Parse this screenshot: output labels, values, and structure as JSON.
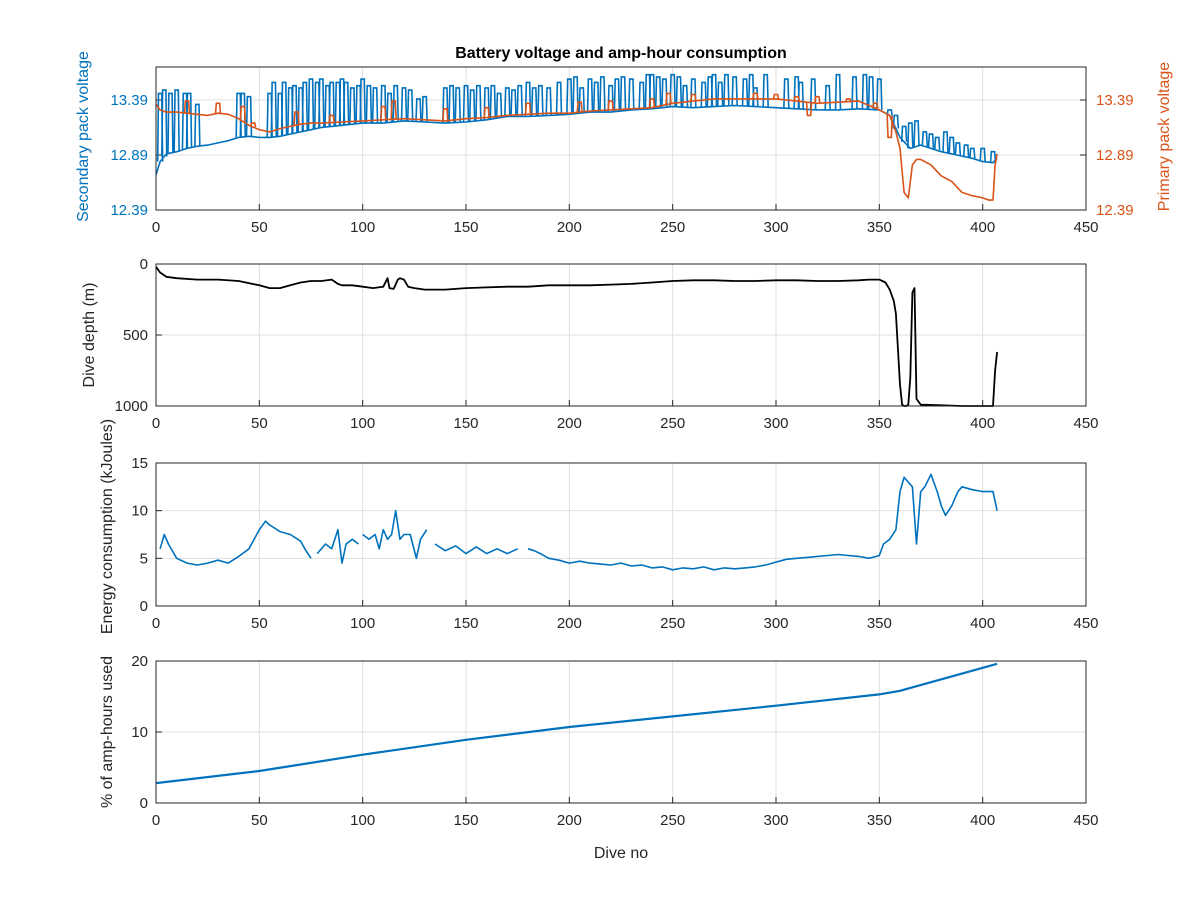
{
  "figure": {
    "title": "Battery voltage and amp-hour consumption",
    "xlabel": "Dive no"
  },
  "chart_data": [
    {
      "type": "line",
      "ylabel_left": "Secondary pack voltage",
      "ylabel_right": "Primary pack voltage",
      "xlim": [
        0,
        450
      ],
      "x_ticks": [
        "0",
        "50",
        "100",
        "150",
        "200",
        "250",
        "300",
        "350",
        "400",
        "450"
      ],
      "ylim_left": [
        12.39,
        13.69
      ],
      "ylim_right": [
        12.39,
        13.69
      ],
      "y_ticks_left": [
        "12.39",
        "12.89",
        "13.39"
      ],
      "y_ticks_right": [
        "12.39",
        "12.89",
        "13.39"
      ],
      "grid": true,
      "colors": {
        "secondary": "#0072BD",
        "primary": "#D95319"
      },
      "series": [
        {
          "axis": "left",
          "x": [
            0,
            2,
            5,
            10,
            15,
            20,
            25,
            30,
            35,
            40,
            45,
            50,
            55,
            60,
            65,
            70,
            75,
            80,
            90,
            100,
            110,
            120,
            130,
            140,
            150,
            160,
            170,
            180,
            190,
            200,
            210,
            220,
            230,
            240,
            250,
            260,
            270,
            280,
            290,
            300,
            310,
            320,
            330,
            340,
            350,
            355,
            360,
            365,
            370,
            375,
            380,
            385,
            390,
            395,
            400,
            405,
            407
          ],
          "y": [
            12.71,
            12.83,
            12.9,
            12.92,
            12.95,
            12.97,
            12.98,
            13.0,
            13.02,
            13.05,
            13.06,
            13.05,
            13.05,
            13.06,
            13.08,
            13.1,
            13.12,
            13.14,
            13.16,
            13.18,
            13.18,
            13.2,
            13.19,
            13.18,
            13.19,
            13.21,
            13.24,
            13.24,
            13.25,
            13.26,
            13.28,
            13.28,
            13.3,
            13.31,
            13.33,
            13.32,
            13.33,
            13.34,
            13.33,
            13.32,
            13.31,
            13.3,
            13.3,
            13.31,
            13.3,
            13.25,
            13.05,
            12.95,
            12.98,
            12.95,
            12.92,
            12.9,
            12.88,
            12.86,
            12.83,
            12.82,
            12.86
          ],
          "spikes": {
            "x": [
              2,
              4,
              7,
              10,
              14,
              16,
              20,
              40,
              42,
              45,
              55,
              57,
              60,
              62,
              65,
              67,
              70,
              72,
              75,
              78,
              80,
              83,
              85,
              88,
              90,
              92,
              95,
              98,
              100,
              103,
              106,
              110,
              113,
              116,
              120,
              123,
              127,
              130,
              140,
              143,
              146,
              150,
              153,
              156,
              160,
              163,
              166,
              170,
              173,
              176,
              180,
              183,
              186,
              190,
              195,
              200,
              203,
              206,
              210,
              213,
              216,
              220,
              223,
              226,
              230,
              235,
              238,
              240,
              243,
              246,
              250,
              253,
              256,
              260,
              265,
              268,
              270,
              273,
              276,
              280,
              285,
              288,
              290,
              295,
              305,
              310,
              312,
              318,
              325,
              330,
              338,
              343,
              346,
              350,
              355,
              358,
              362,
              365,
              368,
              372,
              375,
              378,
              382,
              385,
              388,
              392,
              395,
              400,
              405
            ],
            "y": [
              13.45,
              13.48,
              13.45,
              13.48,
              13.45,
              13.45,
              13.35,
              13.45,
              13.45,
              13.42,
              13.45,
              13.55,
              13.45,
              13.55,
              13.5,
              13.52,
              13.5,
              13.55,
              13.58,
              13.55,
              13.58,
              13.52,
              13.55,
              13.55,
              13.58,
              13.55,
              13.5,
              13.52,
              13.58,
              13.52,
              13.5,
              13.52,
              13.45,
              13.52,
              13.5,
              13.48,
              13.4,
              13.42,
              13.5,
              13.52,
              13.5,
              13.52,
              13.48,
              13.52,
              13.5,
              13.52,
              13.45,
              13.5,
              13.48,
              13.52,
              13.55,
              13.5,
              13.52,
              13.5,
              13.55,
              13.58,
              13.6,
              13.5,
              13.58,
              13.55,
              13.6,
              13.52,
              13.58,
              13.6,
              13.58,
              13.55,
              13.62,
              13.62,
              13.6,
              13.58,
              13.62,
              13.6,
              13.52,
              13.58,
              13.55,
              13.6,
              13.62,
              13.55,
              13.62,
              13.6,
              13.58,
              13.62,
              13.5,
              13.62,
              13.58,
              13.6,
              13.55,
              13.58,
              13.52,
              13.62,
              13.6,
              13.62,
              13.6,
              13.58,
              13.3,
              13.25,
              13.15,
              13.18,
              13.2,
              13.1,
              13.08,
              13.05,
              13.1,
              13.05,
              13.0,
              12.98,
              12.95,
              12.95,
              12.92
            ]
          }
        },
        {
          "axis": "right",
          "x": [
            0,
            2,
            5,
            10,
            15,
            20,
            25,
            30,
            35,
            40,
            45,
            50,
            55,
            60,
            65,
            70,
            75,
            80,
            90,
            100,
            110,
            120,
            130,
            140,
            150,
            160,
            170,
            180,
            190,
            200,
            210,
            220,
            230,
            240,
            250,
            260,
            270,
            280,
            290,
            300,
            310,
            320,
            330,
            340,
            345,
            350,
            355,
            358,
            360,
            362,
            364,
            366,
            368,
            370,
            375,
            380,
            385,
            390,
            395,
            400,
            403,
            405,
            406,
            407
          ],
          "y": [
            13.35,
            13.3,
            13.28,
            13.28,
            13.27,
            13.26,
            13.25,
            13.27,
            13.26,
            13.22,
            13.16,
            13.12,
            13.1,
            13.13,
            13.15,
            13.17,
            13.18,
            13.18,
            13.19,
            13.2,
            13.21,
            13.22,
            13.21,
            13.2,
            13.22,
            13.23,
            13.25,
            13.26,
            13.27,
            13.27,
            13.29,
            13.3,
            13.31,
            13.32,
            13.36,
            13.38,
            13.4,
            13.4,
            13.4,
            13.4,
            13.38,
            13.36,
            13.37,
            13.38,
            13.34,
            13.3,
            13.25,
            13.1,
            12.95,
            12.55,
            12.5,
            12.8,
            12.85,
            12.85,
            12.8,
            12.7,
            12.65,
            12.55,
            12.52,
            12.5,
            12.48,
            12.48,
            12.8,
            12.9
          ],
          "spikes": {
            "x": [
              15,
              30,
              42,
              47,
              68,
              85,
              110,
              115,
              140,
              160,
              180,
              205,
              220,
              240,
              248,
              260,
              290,
              300,
              310,
              316,
              320,
              335,
              348,
              355
            ],
            "y": [
              13.38,
              13.36,
              13.33,
              13.18,
              13.28,
              13.25,
              13.33,
              13.38,
              13.31,
              13.32,
              13.36,
              13.37,
              13.38,
              13.4,
              13.45,
              13.44,
              13.45,
              13.44,
              13.42,
              13.25,
              13.42,
              13.4,
              13.36,
              13.05
            ]
          }
        }
      ]
    },
    {
      "type": "line",
      "ylabel": "Dive depth (m)",
      "xlim": [
        0,
        450
      ],
      "ylim": [
        1000,
        0
      ],
      "y_reversed": true,
      "x_ticks": [
        "0",
        "50",
        "100",
        "150",
        "200",
        "250",
        "300",
        "350",
        "400",
        "450"
      ],
      "y_ticks": [
        "0",
        "500",
        "1000"
      ],
      "grid": true,
      "colors": {
        "line": "#000000"
      },
      "series": [
        {
          "x": [
            0,
            2,
            5,
            10,
            20,
            30,
            40,
            50,
            55,
            60,
            65,
            70,
            75,
            80,
            85,
            88,
            90,
            95,
            100,
            105,
            110,
            112,
            113,
            115,
            117,
            118,
            120,
            122,
            125,
            130,
            140,
            150,
            160,
            170,
            180,
            190,
            200,
            210,
            220,
            230,
            240,
            250,
            260,
            270,
            280,
            290,
            300,
            310,
            320,
            330,
            340,
            345,
            350,
            353,
            355,
            357,
            358,
            360,
            361,
            362,
            363,
            364,
            365,
            366,
            367,
            368,
            370,
            380,
            390,
            400,
            405,
            406,
            407
          ],
          "y": [
            20,
            60,
            90,
            100,
            110,
            110,
            120,
            150,
            170,
            170,
            150,
            130,
            120,
            120,
            110,
            140,
            150,
            150,
            160,
            170,
            160,
            100,
            170,
            175,
            110,
            100,
            110,
            160,
            170,
            180,
            180,
            170,
            165,
            160,
            160,
            150,
            150,
            150,
            145,
            140,
            130,
            120,
            115,
            115,
            120,
            120,
            115,
            115,
            120,
            120,
            115,
            110,
            110,
            130,
            180,
            260,
            350,
            850,
            990,
            1000,
            1000,
            990,
            800,
            200,
            170,
            950,
            990,
            995,
            1000,
            1000,
            1000,
            750,
            620
          ]
        }
      ]
    },
    {
      "type": "line",
      "ylabel": "Energy consumption (kJoules)",
      "xlim": [
        0,
        450
      ],
      "ylim": [
        0,
        15
      ],
      "x_ticks": [
        "0",
        "50",
        "100",
        "150",
        "200",
        "250",
        "300",
        "350",
        "400",
        "450"
      ],
      "y_ticks": [
        "0",
        "5",
        "10",
        "15"
      ],
      "grid": true,
      "colors": {
        "line": "#0072BD"
      },
      "series": [
        {
          "x": [
            2,
            4,
            6,
            10,
            15,
            20,
            25,
            30,
            35,
            40,
            45,
            50,
            53,
            55,
            60,
            65,
            70,
            72,
            75
          ],
          "y": [
            6.0,
            7.5,
            6.5,
            5.0,
            4.5,
            4.3,
            4.5,
            4.8,
            4.5,
            5.2,
            6.0,
            8.0,
            8.9,
            8.5,
            7.8,
            7.5,
            6.8,
            6.0,
            5.0
          ]
        },
        {
          "x": [
            78,
            82,
            85,
            88,
            90,
            92,
            95,
            98
          ],
          "y": [
            5.5,
            6.5,
            6.0,
            8.0,
            4.5,
            6.5,
            7.0,
            6.5
          ]
        },
        {
          "x": [
            100,
            103,
            106,
            108,
            110,
            112,
            114,
            116,
            118,
            120,
            123,
            126,
            128,
            131
          ],
          "y": [
            7.5,
            7.0,
            7.5,
            6.0,
            8.0,
            7.0,
            7.5,
            10.0,
            7.0,
            7.5,
            7.5,
            5.0,
            7.0,
            8.0
          ]
        },
        {
          "x": [
            135,
            140,
            145,
            150,
            155,
            160,
            165,
            170,
            175
          ],
          "y": [
            6.5,
            5.8,
            6.3,
            5.5,
            6.2,
            5.5,
            6.0,
            5.5,
            6.0
          ]
        },
        {
          "x": [
            180,
            183,
            186,
            190,
            195,
            200,
            205,
            210,
            215,
            220,
            225,
            230,
            235,
            240,
            245,
            250,
            255,
            260,
            265,
            270,
            275,
            280,
            285,
            290,
            295,
            300,
            305,
            310,
            315,
            320,
            325,
            330,
            335,
            340,
            345,
            350,
            352,
            355,
            358,
            360,
            362,
            364,
            366,
            368,
            370,
            372,
            375,
            378,
            380,
            382,
            385,
            388,
            390,
            395,
            400,
            405,
            407
          ],
          "y": [
            6.0,
            5.8,
            5.5,
            5.0,
            4.8,
            4.5,
            4.7,
            4.5,
            4.4,
            4.3,
            4.5,
            4.2,
            4.3,
            4.0,
            4.1,
            3.8,
            4.0,
            3.9,
            4.1,
            3.8,
            4.0,
            3.9,
            4.0,
            4.1,
            4.3,
            4.6,
            4.9,
            5.0,
            5.1,
            5.2,
            5.3,
            5.4,
            5.3,
            5.2,
            5.0,
            5.3,
            6.5,
            7.0,
            8.0,
            12.0,
            13.5,
            13.0,
            12.5,
            6.5,
            12.0,
            12.5,
            13.8,
            12.0,
            10.5,
            9.5,
            10.5,
            12.0,
            12.5,
            12.2,
            12.0,
            12.0,
            10.0
          ]
        }
      ]
    },
    {
      "type": "line",
      "ylabel": "% of amp-hours used",
      "xlim": [
        0,
        450
      ],
      "ylim": [
        0,
        20
      ],
      "x_ticks": [
        "0",
        "50",
        "100",
        "150",
        "200",
        "250",
        "300",
        "350",
        "400",
        "450"
      ],
      "y_ticks": [
        "0",
        "10",
        "20"
      ],
      "grid": true,
      "colors": {
        "line": "#0072BD"
      },
      "series": [
        {
          "x": [
            0,
            50,
            100,
            150,
            200,
            250,
            300,
            350,
            360,
            407
          ],
          "y": [
            2.8,
            4.5,
            6.8,
            8.9,
            10.7,
            12.2,
            13.7,
            15.3,
            15.8,
            19.6
          ]
        }
      ]
    }
  ]
}
